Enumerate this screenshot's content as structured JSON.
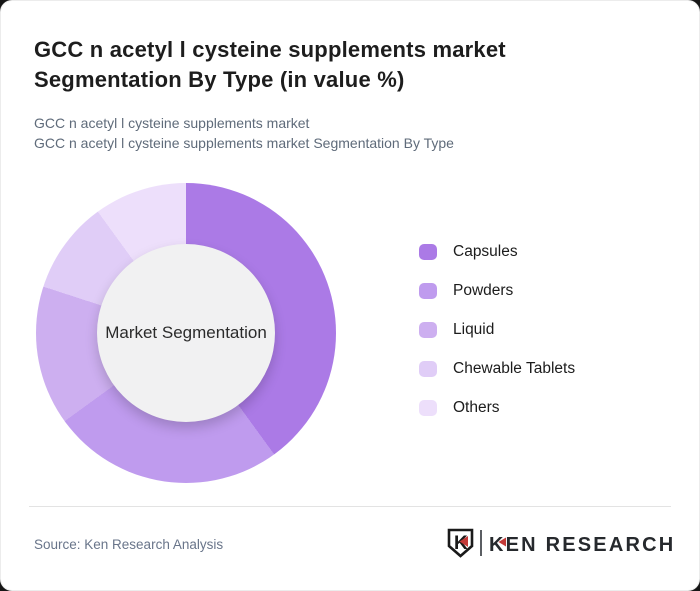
{
  "header": {
    "title": "GCC n acetyl l cysteine supplements market Segmentation By Type (in value %)",
    "subtitle_line1": "GCC n acetyl l cysteine supplements market",
    "subtitle_line2": "GCC n acetyl l cysteine supplements market Segmentation By Type"
  },
  "chart_data": {
    "type": "pie",
    "subtype": "donut",
    "title": "GCC n acetyl l cysteine supplements market Segmentation By Type (in value %)",
    "center_label": "Market Segmentation",
    "categories": [
      "Capsules",
      "Powders",
      "Liquid",
      "Chewable Tablets",
      "Others"
    ],
    "values": [
      40,
      25,
      15,
      10,
      10
    ],
    "unit": "percent",
    "colors": [
      "#ab7ae6",
      "#bf9bee",
      "#cdaff0",
      "#e0cdf7",
      "#eddffb"
    ],
    "start_angle_deg": 0,
    "direction": "clockwise",
    "legend_position": "right",
    "hole_color": "#f1f1f2"
  },
  "footer": {
    "source": "Source: Ken Research Analysis",
    "logo": {
      "shield_letter": "K",
      "brand": "KEN RESEARCH",
      "accent_red": "#c43a38",
      "charcoal": "#26292d"
    }
  }
}
